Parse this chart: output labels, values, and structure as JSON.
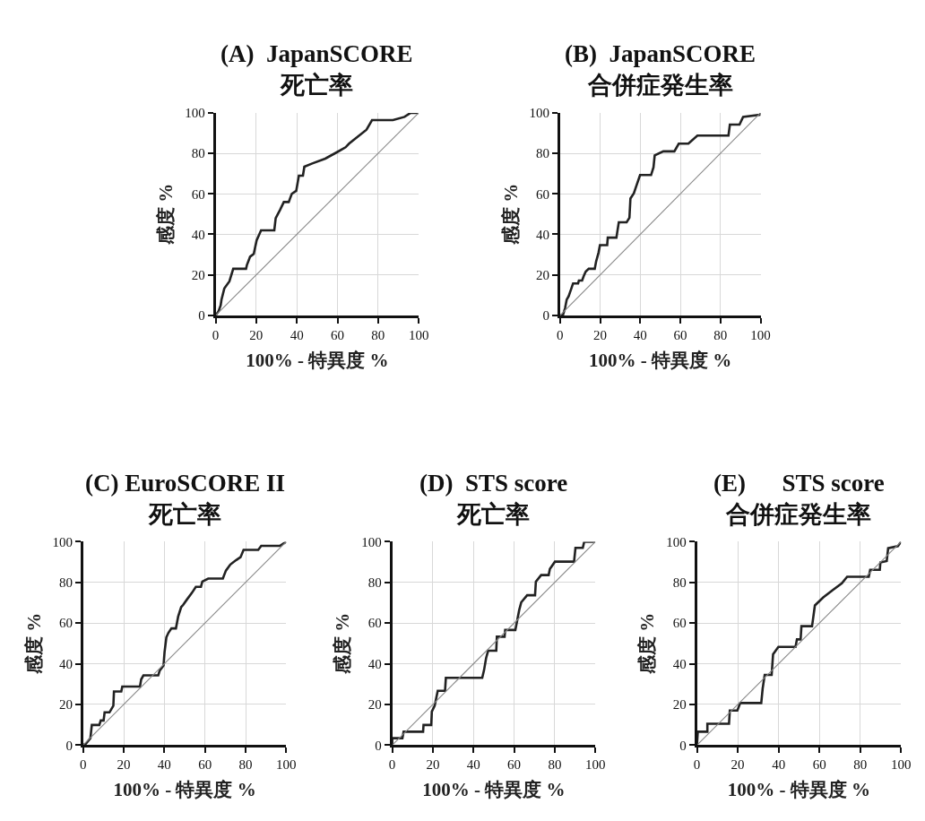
{
  "chart_data": [
    {
      "type": "line",
      "title": "(A)  JapanSCORE\n死亡率",
      "xlabel": "100% - 特異度 %",
      "ylabel": "感度 %",
      "xlim": [
        0,
        100
      ],
      "ylim": [
        0,
        100
      ],
      "xticks": [
        0,
        20,
        40,
        60,
        80,
        100
      ],
      "yticks": [
        0,
        20,
        40,
        60,
        80,
        100
      ],
      "grid": true,
      "marker": "none",
      "line_style": "solid",
      "series": [
        {
          "color": "#222222",
          "x": [
            0,
            1.4,
            2.5,
            2.9,
            4.3,
            6.8,
            8.7,
            15,
            15.4,
            17,
            18.8,
            20.2,
            22.4,
            28.9,
            29.6,
            31.7,
            33.6,
            36,
            37.5,
            39.7,
            41,
            43,
            43.7,
            47.6,
            54,
            60,
            64,
            65.7,
            74.3,
            77,
            87.3,
            93,
            96,
            100
          ],
          "values": [
            0,
            1.9,
            5,
            7.7,
            13.3,
            16.8,
            23,
            23,
            24.8,
            29,
            30.4,
            37,
            42,
            42,
            48,
            52,
            56,
            56,
            60,
            61.5,
            69,
            69,
            73.4,
            75,
            77.4,
            80.7,
            83,
            84.8,
            91.7,
            96.4,
            96.4,
            98,
            100,
            100
          ]
        },
        {
          "color": "#888888",
          "x": [
            0,
            100
          ],
          "values": [
            0,
            100
          ]
        }
      ]
    },
    {
      "type": "line",
      "title": "(B)  JapanSCORE\n合併症発生率",
      "xlabel": "100% - 特異度 %",
      "ylabel": "感度 %",
      "xlim": [
        0,
        100
      ],
      "ylim": [
        0,
        100
      ],
      "xticks": [
        0,
        20,
        40,
        60,
        80,
        100
      ],
      "yticks": [
        0,
        20,
        40,
        60,
        80,
        100
      ],
      "grid": true,
      "marker": "none",
      "line_style": "solid",
      "series": [
        {
          "color": "#222222",
          "x": [
            0,
            1.4,
            2.5,
            3.3,
            4.3,
            6.5,
            9,
            9.4,
            11,
            11.8,
            12.8,
            14.3,
            17.3,
            18,
            19.2,
            19.9,
            23.5,
            23.8,
            28.1,
            29.3,
            33.2,
            34.6,
            35.1,
            36.8,
            37.9,
            39.9,
            45.4,
            46.6,
            47.2,
            51.5,
            57,
            59.2,
            64,
            68.5,
            84,
            84.7,
            89.5,
            91.3,
            99.6,
            100
          ],
          "values": [
            0,
            0,
            3.6,
            7.7,
            9.5,
            15.8,
            15.8,
            17.2,
            17.2,
            19.4,
            21.6,
            23,
            23,
            26.7,
            31,
            34.7,
            34.7,
            38.4,
            38.4,
            46,
            46,
            48.2,
            57.7,
            60.3,
            63.5,
            69.3,
            69.3,
            73.1,
            79,
            81,
            81,
            84.8,
            84.8,
            88.8,
            88.8,
            94.2,
            94.2,
            98,
            99,
            100
          ]
        },
        {
          "color": "#888888",
          "x": [
            0,
            100
          ],
          "values": [
            0,
            100
          ]
        }
      ]
    },
    {
      "type": "line",
      "title": "(C) EuroSCORE II\n死亡率",
      "xlabel": "100% - 特異度 %",
      "ylabel": "感度 %",
      "xlim": [
        0,
        100
      ],
      "ylim": [
        0,
        100
      ],
      "xticks": [
        0,
        20,
        40,
        60,
        80,
        100
      ],
      "yticks": [
        0,
        20,
        40,
        60,
        80,
        100
      ],
      "grid": true,
      "marker": "none",
      "line_style": "solid",
      "series": [
        {
          "color": "#222222",
          "x": [
            0,
            1.4,
            3.6,
            4.3,
            8,
            8.7,
            10.1,
            10.6,
            13,
            14.9,
            15.2,
            18.8,
            19.3,
            28,
            28.6,
            29.7,
            37,
            37.7,
            39.6,
            40.1,
            41,
            42,
            43.5,
            45.7,
            46.8,
            48.3,
            49.3,
            51.2,
            53.6,
            55.5,
            58,
            58.7,
            61.6,
            68.8,
            70.3,
            72.5,
            75.4,
            77.5,
            79,
            86.2,
            87.7,
            97,
            100
          ],
          "values": [
            0,
            0.7,
            3.4,
            9.9,
            9.9,
            12.1,
            12.1,
            16.1,
            16.1,
            19.4,
            26.4,
            26.4,
            28.8,
            28.8,
            32.3,
            34.3,
            34.3,
            36.6,
            39.1,
            45.7,
            53,
            55.2,
            57.4,
            57.4,
            63.2,
            67.9,
            69,
            71.7,
            74.9,
            77.8,
            77.8,
            80.4,
            81.9,
            81.9,
            85.8,
            88.8,
            91,
            92.4,
            96,
            96,
            98,
            98,
            100
          ]
        },
        {
          "color": "#888888",
          "x": [
            0,
            100
          ],
          "values": [
            0,
            100
          ]
        }
      ]
    },
    {
      "type": "line",
      "title": "(D)  STS score\n死亡率",
      "xlabel": "100% - 特異度 %",
      "ylabel": "感度 %",
      "xlim": [
        0,
        100
      ],
      "ylim": [
        0,
        100
      ],
      "xticks": [
        0,
        20,
        40,
        60,
        80,
        100
      ],
      "yticks": [
        0,
        20,
        40,
        60,
        80,
        100
      ],
      "grid": true,
      "marker": "none",
      "line_style": "solid",
      "series": [
        {
          "color": "#222222",
          "x": [
            0,
            0,
            5,
            5.6,
            15.2,
            15.4,
            19.2,
            19.5,
            20.9,
            22.4,
            26,
            26.4,
            44.3,
            45.2,
            46.2,
            47.2,
            51.2,
            51.5,
            55.3,
            55.6,
            60.6,
            61.6,
            62.5,
            63.5,
            66.4,
            70.3,
            70.7,
            73.3,
            77,
            77.6,
            80.1,
            89.5,
            90.2,
            93.8,
            94.5,
            100
          ],
          "values": [
            0,
            3.4,
            3.4,
            6.6,
            6.6,
            9.9,
            9.9,
            16.5,
            19.4,
            26.7,
            26.7,
            33.1,
            33.1,
            36.9,
            42.8,
            46.4,
            46.4,
            53.3,
            53.3,
            56.6,
            56.6,
            61.7,
            66.4,
            70.2,
            73.7,
            73.7,
            80.4,
            83.6,
            83.6,
            86.6,
            90.2,
            90.2,
            97,
            97,
            100,
            100
          ]
        },
        {
          "color": "#888888",
          "x": [
            0,
            100
          ],
          "values": [
            0,
            100
          ]
        }
      ]
    },
    {
      "type": "line",
      "title": "(E)      STS score\n合併症発生率",
      "xlabel": "100% - 特異度 %",
      "ylabel": "感度 %",
      "xlim": [
        0,
        100
      ],
      "ylim": [
        0,
        100
      ],
      "xticks": [
        0,
        20,
        40,
        60,
        80,
        100
      ],
      "yticks": [
        0,
        20,
        40,
        60,
        80,
        100
      ],
      "grid": true,
      "marker": "none",
      "line_style": "solid",
      "series": [
        {
          "color": "#222222",
          "x": [
            0,
            0.4,
            5.1,
            5.1,
            15.7,
            16.1,
            19.8,
            21.2,
            31.5,
            32.2,
            33.2,
            36.6,
            37.3,
            39.9,
            48.3,
            49,
            50.8,
            51.2,
            56.4,
            57.8,
            61.9,
            66.6,
            71,
            73.6,
            84.2,
            84.9,
            89.6,
            89.9,
            93,
            93.7,
            98.5,
            100
          ],
          "values": [
            0,
            6.6,
            6.6,
            10.5,
            10.5,
            17,
            17,
            20.7,
            20.7,
            27.9,
            34.5,
            34.5,
            44.7,
            48.3,
            48.3,
            52,
            52,
            58.5,
            58.5,
            68.7,
            72.6,
            76.3,
            79.6,
            82.8,
            82.8,
            86.2,
            86.2,
            89.8,
            90.5,
            96.8,
            97.8,
            100
          ]
        },
        {
          "color": "#888888",
          "x": [
            0,
            100
          ],
          "values": [
            0,
            100
          ]
        }
      ]
    }
  ]
}
